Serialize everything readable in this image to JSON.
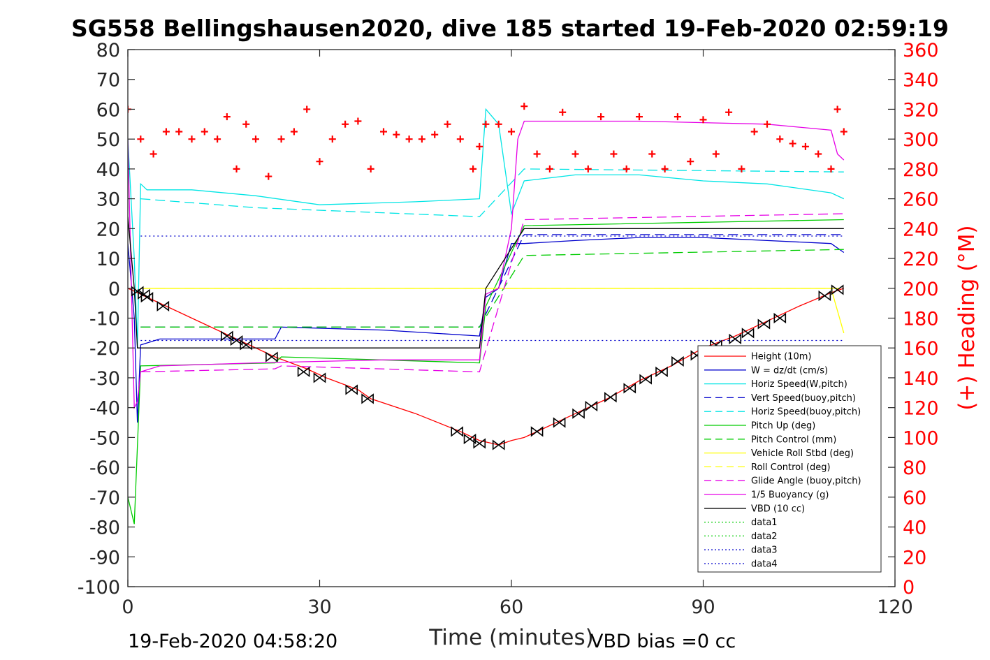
{
  "chart_data": {
    "type": "line",
    "title": "SG558 Bellingshausen2020, dive 185 started 19-Feb-2020 02:59:19",
    "xlabel": "Time (minutes)",
    "ylabel": "",
    "y2label": "(+) Heading (°M)",
    "xlim": [
      0,
      120
    ],
    "ylim": [
      -100,
      80
    ],
    "y2lim": [
      0,
      360
    ],
    "xticks": [
      0,
      30,
      60,
      90,
      120
    ],
    "yticks": [
      80,
      70,
      60,
      50,
      40,
      30,
      20,
      10,
      0,
      -10,
      -20,
      -30,
      -40,
      -50,
      -60,
      -70,
      -80,
      -90,
      -100
    ],
    "y2ticks": [
      360,
      340,
      320,
      300,
      280,
      260,
      240,
      220,
      200,
      180,
      160,
      140,
      120,
      100,
      80,
      60,
      40,
      20,
      0
    ],
    "grid": false,
    "legend_position": "bottom-right",
    "footer_left": "19-Feb-2020 04:58:20",
    "footer_right": "VBD bias =0 cc",
    "colors": {
      "height": "#ff0000",
      "w": "#0000cc",
      "horiz": "#00e5e5",
      "pitch": "#00cc00",
      "roll": "#ffff00",
      "glide": "#e600e6",
      "buoy": "#e600e6",
      "vbd": "#000000",
      "heading": "#ff0000"
    },
    "series": [
      {
        "name": "Height (10m)",
        "style": "solid",
        "color": "#ff0000",
        "x": [
          0,
          1,
          2,
          3,
          5,
          10,
          15,
          18,
          23,
          28,
          31,
          36,
          38,
          45,
          52,
          55,
          57,
          58,
          60,
          62,
          65,
          70,
          75,
          80,
          85,
          90,
          95,
          100,
          105,
          110,
          112
        ],
        "y": [
          0,
          -1,
          -2,
          -3,
          -5,
          -10,
          -15,
          -18,
          -23,
          -27,
          -30,
          -34,
          -37,
          -42,
          -48,
          -51,
          -52,
          -52.5,
          -51,
          -50,
          -47,
          -42,
          -37,
          -31,
          -26,
          -20,
          -16,
          -11,
          -6,
          -1.5,
          0
        ]
      },
      {
        "name": "W = dz/dt (cm/s)",
        "style": "solid",
        "color": "#0000cc",
        "x": [
          0,
          1,
          1.5,
          2,
          5,
          15,
          23,
          24,
          40,
          55,
          56,
          58,
          60,
          62,
          70,
          80,
          90,
          100,
          110,
          112
        ],
        "y": [
          15,
          -10,
          -45,
          -19,
          -17,
          -17,
          -17,
          -13,
          -14,
          -16,
          -3,
          0,
          15,
          15,
          16,
          17,
          17,
          16,
          15,
          12
        ]
      },
      {
        "name": "Horiz Speed(W,pitch)",
        "style": "solid",
        "color": "#00e5e5",
        "x": [
          0,
          1,
          1.5,
          2,
          3,
          10,
          20,
          30,
          45,
          55,
          56,
          58,
          60,
          62,
          70,
          80,
          90,
          100,
          110,
          112
        ],
        "y": [
          50,
          10,
          -20,
          35,
          33,
          33,
          31,
          28,
          29,
          30,
          60,
          55,
          25,
          36,
          38,
          38,
          36,
          35,
          32,
          30
        ]
      },
      {
        "name": "Vert Speed(buoy,pitch)",
        "style": "dash",
        "color": "#0000cc",
        "x": [
          2,
          55,
          62,
          112
        ],
        "y": [
          -13,
          -13,
          18,
          18
        ]
      },
      {
        "name": "Horiz Speed(buoy,pitch)",
        "style": "dash",
        "color": "#00e5e5",
        "x": [
          2,
          20,
          55,
          62,
          112
        ],
        "y": [
          30,
          27,
          24,
          40,
          39
        ]
      },
      {
        "name": "Pitch Up (deg)",
        "style": "solid",
        "color": "#00cc00",
        "x": [
          0,
          1,
          2,
          23,
          24,
          55,
          56,
          62,
          112
        ],
        "y": [
          -70,
          -79,
          -26,
          -25,
          -23,
          -25,
          -6,
          21,
          23
        ]
      },
      {
        "name": "Pitch Control (mm)",
        "style": "dash",
        "color": "#00cc00",
        "x": [
          2,
          55,
          62,
          112
        ],
        "y": [
          -13,
          -13,
          11,
          13
        ]
      },
      {
        "name": "Vehicle Roll Stbd (deg)",
        "style": "solid",
        "color": "#ffff00",
        "x": [
          2,
          110,
          112
        ],
        "y": [
          0,
          0,
          -15
        ]
      },
      {
        "name": "Roll Control (deg)",
        "style": "dash",
        "color": "#ffff00",
        "x": [
          2,
          112
        ],
        "y": [
          0,
          0
        ]
      },
      {
        "name": "Glide Angle (buoy,pitch)",
        "style": "dash",
        "color": "#e600e6",
        "x": [
          2,
          23,
          24,
          55,
          62,
          112
        ],
        "y": [
          -28,
          -27,
          -26,
          -28,
          23,
          25
        ]
      },
      {
        "name": "1/5 Buoyancy (g)",
        "style": "solid",
        "color": "#e600e6",
        "x": [
          0,
          1,
          1.5,
          2,
          5,
          20,
          40,
          55,
          56,
          58,
          60,
          61,
          62,
          80,
          100,
          110,
          111,
          112
        ],
        "y": [
          50,
          -40,
          -38,
          -28,
          -26,
          -25,
          -24,
          -24,
          -2,
          0,
          20,
          50,
          56,
          56,
          55,
          53,
          45,
          43
        ]
      },
      {
        "name": "VBD (10 cc)",
        "style": "solid",
        "color": "#000000",
        "x": [
          0,
          1,
          1.5,
          2,
          55,
          56,
          62,
          112
        ],
        "y": [
          24,
          0,
          -20,
          -20,
          -20,
          0,
          20,
          20
        ]
      },
      {
        "name": "data1",
        "style": "dot",
        "color": "#00cc00",
        "x": [],
        "y": []
      },
      {
        "name": "data2",
        "style": "dot",
        "color": "#00cc00",
        "x": [],
        "y": []
      },
      {
        "name": "data3",
        "style": "dot",
        "color": "#0000cc",
        "x": [
          2,
          112
        ],
        "y": [
          17.5,
          17.5
        ]
      },
      {
        "name": "data4",
        "style": "dot",
        "color": "#0000cc",
        "x": [
          2,
          112
        ],
        "y": [
          -17.5,
          -17.5
        ]
      }
    ],
    "heading": {
      "axis": "right",
      "color": "#ff0000",
      "marker": "+",
      "x": [
        0,
        2,
        4,
        6,
        8,
        10,
        12,
        14,
        15.5,
        17,
        18.5,
        20,
        22,
        24,
        26,
        28,
        30,
        32,
        34,
        36,
        38,
        40,
        42,
        44,
        46,
        48,
        50,
        52,
        54,
        55,
        56,
        58,
        60,
        62,
        64,
        66,
        68,
        70,
        72,
        74,
        76,
        78,
        80,
        82,
        84,
        86,
        88,
        90,
        92,
        94,
        96,
        98,
        100,
        102,
        104,
        106,
        108,
        110,
        111,
        112
      ],
      "y": [
        320,
        300,
        290,
        305,
        305,
        300,
        305,
        300,
        315,
        280,
        310,
        300,
        275,
        300,
        305,
        320,
        285,
        300,
        310,
        312,
        280,
        305,
        303,
        300,
        300,
        303,
        310,
        300,
        280,
        295,
        310,
        310,
        305,
        322,
        290,
        280,
        318,
        290,
        280,
        315,
        290,
        280,
        315,
        290,
        280,
        315,
        285,
        313,
        290,
        318,
        280,
        305,
        310,
        300,
        297,
        295,
        290,
        280,
        320,
        305
      ]
    },
    "markers": {
      "note": "diamond/triangle markers placed along Height (10m) trace",
      "x": [
        1.5,
        2.5,
        3,
        5.5,
        15.5,
        17,
        18.5,
        22.5,
        27.5,
        30,
        35,
        37.5,
        51.5,
        53.5,
        55,
        58,
        64,
        67.5,
        70.5,
        72.5,
        75.5,
        78.5,
        81,
        83.5,
        86,
        89,
        92,
        95,
        97,
        99.5,
        102,
        109,
        111
      ],
      "y": [
        -1,
        -2,
        -3,
        -6,
        -16,
        -17.5,
        -19,
        -23,
        -28,
        -30,
        -34,
        -37,
        -48,
        -50.5,
        -52,
        -52.5,
        -48,
        -45,
        -42,
        -39.5,
        -36.5,
        -33.5,
        -30.5,
        -28,
        -24.5,
        -22.5,
        -19,
        -17,
        -15,
        -12,
        -10,
        -2.5,
        -0.5
      ]
    }
  }
}
